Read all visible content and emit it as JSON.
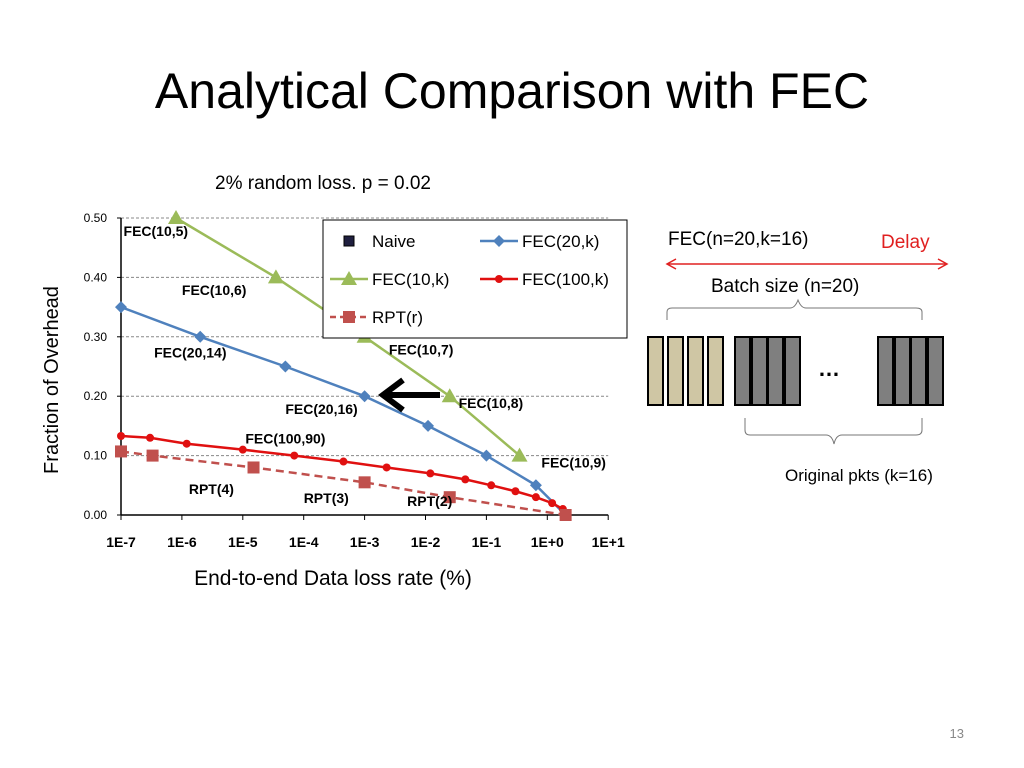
{
  "title": "Analytical Comparison with FEC",
  "subtitle": "2% random loss. p =  0.02",
  "slide_number": "13",
  "chart_data": {
    "type": "line",
    "xlabel": "End-to-end Data loss rate (%)",
    "ylabel": "Fraction of Overhead",
    "x_scale": "log",
    "xlim": [
      "1E-7",
      "1E+1"
    ],
    "ylim": [
      0,
      0.5
    ],
    "x_ticks": [
      "1E-7",
      "1E-6",
      "1E-5",
      "1E-4",
      "1E-3",
      "1E-2",
      "1E-1",
      "1E+0",
      "1E+1"
    ],
    "y_ticks": [
      "0.00",
      "0.10",
      "0.20",
      "0.30",
      "0.40",
      "0.50"
    ],
    "grid": "horizontal dashed",
    "legend_position": "top-right",
    "series": [
      {
        "name": "Naive",
        "color": "#1f1f3f",
        "marker": "square",
        "points": [
          [
            2,
            0
          ]
        ]
      },
      {
        "name": "FEC(20,k)",
        "color": "#4f81bd",
        "marker": "diamond",
        "points": [
          [
            1e-07,
            0.35
          ],
          [
            2e-06,
            0.3
          ],
          [
            5e-05,
            0.25
          ],
          [
            0.001,
            0.2
          ],
          [
            0.011,
            0.15
          ],
          [
            0.1,
            0.1
          ],
          [
            0.65,
            0.05
          ],
          [
            2,
            0
          ]
        ]
      },
      {
        "name": "FEC(10,k)",
        "color": "#9bbb59",
        "marker": "triangle",
        "points": [
          [
            8e-07,
            0.5
          ],
          [
            3.5e-05,
            0.4
          ],
          [
            0.001,
            0.3
          ],
          [
            0.025,
            0.2
          ],
          [
            0.35,
            0.1
          ]
        ]
      },
      {
        "name": "FEC(100,k)",
        "color": "#e01010",
        "marker": "circle",
        "points": [
          [
            1e-07,
            0.133
          ],
          [
            3e-07,
            0.13
          ],
          [
            1.2e-06,
            0.12
          ],
          [
            1e-05,
            0.11
          ],
          [
            7e-05,
            0.1
          ],
          [
            0.00045,
            0.09
          ],
          [
            0.0023,
            0.08
          ],
          [
            0.012,
            0.07
          ],
          [
            0.045,
            0.06
          ],
          [
            0.12,
            0.05
          ],
          [
            0.3,
            0.04
          ],
          [
            0.65,
            0.03
          ],
          [
            1.2,
            0.02
          ],
          [
            1.8,
            0.01
          ],
          [
            2,
            0
          ]
        ]
      },
      {
        "name": "RPT(r)",
        "color": "#c0504d",
        "marker": "square",
        "dashed": true,
        "points": [
          [
            1e-07,
            0.107
          ],
          [
            3.3e-07,
            0.1
          ],
          [
            1.5e-05,
            0.08
          ],
          [
            0.001,
            0.055
          ],
          [
            0.025,
            0.03
          ],
          [
            2,
            0
          ]
        ]
      }
    ],
    "annotations": [
      {
        "text": "FEC(10,5)",
        "x": 1.1e-07,
        "y": 0.47
      },
      {
        "text": "FEC(10,6)",
        "x": 1e-06,
        "y": 0.37
      },
      {
        "text": "FEC(20,14)",
        "x": 3.5e-07,
        "y": 0.265
      },
      {
        "text": "FEC(10,7)",
        "x": 0.0025,
        "y": 0.27
      },
      {
        "text": "FEC(10,8)",
        "x": 0.035,
        "y": 0.18
      },
      {
        "text": "FEC(20,16)",
        "x": 5e-05,
        "y": 0.17
      },
      {
        "text": "FEC(100,90)",
        "x": 1.1e-05,
        "y": 0.12
      },
      {
        "text": "FEC(10,9)",
        "x": 0.8,
        "y": 0.08
      },
      {
        "text": "RPT(4)",
        "x": 1.3e-06,
        "y": 0.035
      },
      {
        "text": "RPT(3)",
        "x": 0.0001,
        "y": 0.02
      },
      {
        "text": "RPT(2)",
        "x": 0.005,
        "y": 0.015
      }
    ]
  },
  "diagram": {
    "fec_label": "FEC(n=20,k=16)",
    "delay_label": "Delay",
    "batch_label": "Batch size (n=20)",
    "ellipsis": "…",
    "original_label": "Original pkts (k=16)",
    "colors": {
      "data_pkt": "#cfc6a4",
      "fec_pkt": "#7f7f7f",
      "delay": "#e02020"
    }
  }
}
